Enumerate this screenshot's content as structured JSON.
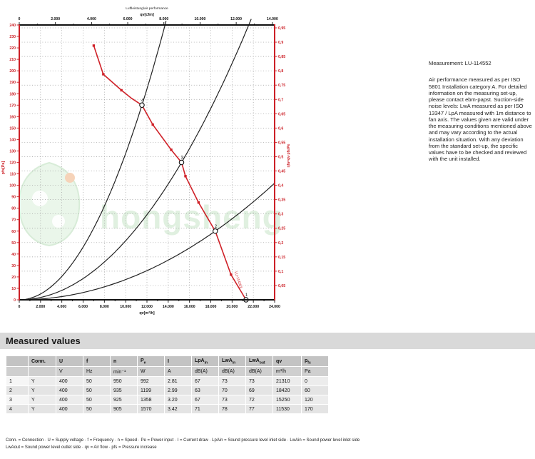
{
  "chart": {
    "title_line1": "Luftleistung/air performance",
    "top_axis_label": "qv[cfm]",
    "bottom_axis_label": "qv[m³/h]",
    "left_axis_label": "pfs[Pa]",
    "right_axis_label": "ηfa=qv·pfs/Pe",
    "curve_end_label": "LU-114552",
    "watermark_text": "hongsheng",
    "colors": {
      "axis_red": "#cc2027",
      "curve_red": "#cf2128",
      "black": "#1a1a1a",
      "grid": "#9a9a9a",
      "watermark_green": "#b9deb9",
      "watermark_fill": "#d9efd9",
      "watermark_dot": "#f0b080"
    }
  },
  "chart_data": {
    "type": "line",
    "title": "Luftleistung/air performance",
    "xlabel": "qv[m³/h]",
    "xlabel_top": "qv[cfm]",
    "ylabel_left": "pfs[Pa]",
    "ylabel_right": "ηfa=qv·pfs/Pe",
    "x_bottom": {
      "min": 0,
      "max": 24000,
      "step": 2000
    },
    "x_top": {
      "min": 0,
      "max": 14000,
      "step": 2000,
      "cfm_to_m3h": 1.699
    },
    "y_left": {
      "min": 0,
      "max": 240,
      "label_step": 10,
      "grid_step": 20
    },
    "y_right": {
      "min": 0,
      "max": 0.96,
      "step": 0.05
    },
    "fan_curve": [
      [
        7000,
        222
      ],
      [
        7900,
        197
      ],
      [
        9600,
        183
      ],
      [
        10550,
        176
      ],
      [
        11530,
        170
      ],
      [
        12550,
        153
      ],
      [
        14280,
        131
      ],
      [
        15250,
        120
      ],
      [
        15620,
        108
      ],
      [
        16850,
        85
      ],
      [
        18420,
        60
      ],
      [
        19900,
        22
      ],
      [
        21310,
        0
      ]
    ],
    "marker_points": [
      [
        7000,
        222
      ],
      [
        7900,
        197
      ],
      [
        9600,
        183
      ],
      [
        12550,
        153
      ],
      [
        14280,
        131
      ],
      [
        15620,
        108
      ],
      [
        16850,
        85
      ],
      [
        19900,
        22
      ]
    ],
    "measured_points": [
      {
        "label": "1",
        "qv": 21310,
        "pfs": 0
      },
      {
        "label": "2",
        "qv": 18420,
        "pfs": 60
      },
      {
        "label": "3",
        "qv": 15250,
        "pfs": 120
      },
      {
        "label": "4",
        "qv": 11530,
        "pfs": 170
      }
    ],
    "system_curves": [
      {
        "through_qv": 11530,
        "through_pfs": 170
      },
      {
        "through_qv": 15250,
        "through_pfs": 120
      },
      {
        "through_qv": 18420,
        "through_pfs": 60
      }
    ],
    "legend_position": "none",
    "grid": true
  },
  "side_text": {
    "title": "Measurement: LU-114552",
    "body": "Air performance measured as per ISO 5801 Installation category A. For detailed information on the measuring set-up, please contact ebm-papst. Suction-side noise levels: LwA measured as per ISO 13347 / LpA measured with 1m distance to fan axis. The values given are valid under the measuring conditions mentioned above and may vary according to the actual installation situation. With any deviation from the standard set-up, the specific values have to be checked and reviewed with the unit installed."
  },
  "measured_values": {
    "section_title": "Measured values",
    "columns": [
      {
        "base": "",
        "sub": ""
      },
      {
        "base": "Conn.",
        "sub": ""
      },
      {
        "base": "U",
        "sub": ""
      },
      {
        "base": "f",
        "sub": ""
      },
      {
        "base": "n",
        "sub": ""
      },
      {
        "base": "P",
        "sub": "e"
      },
      {
        "base": "I",
        "sub": ""
      },
      {
        "base": "LpA",
        "sub": "in"
      },
      {
        "base": "LwA",
        "sub": "in"
      },
      {
        "base": "LwA",
        "sub": "out"
      },
      {
        "base": "qv",
        "sub": ""
      },
      {
        "base": "p",
        "sub": "fs"
      }
    ],
    "units": [
      "",
      "",
      "V",
      "Hz",
      "min⁻¹",
      "W",
      "A",
      "dB(A)",
      "dB(A)",
      "dB(A)",
      "m³/h",
      "Pa"
    ],
    "rows": [
      [
        "1",
        "Y",
        "400",
        "50",
        "950",
        "992",
        "2.81",
        "67",
        "73",
        "73",
        "21310",
        "0"
      ],
      [
        "2",
        "Y",
        "400",
        "50",
        "935",
        "1199",
        "2.99",
        "63",
        "70",
        "69",
        "18420",
        "60"
      ],
      [
        "3",
        "Y",
        "400",
        "50",
        "925",
        "1358",
        "3.20",
        "67",
        "73",
        "72",
        "15250",
        "120"
      ],
      [
        "4",
        "Y",
        "400",
        "50",
        "905",
        "1570",
        "3.42",
        "71",
        "78",
        "77",
        "11530",
        "170"
      ]
    ]
  },
  "footnotes": {
    "line1": "Conn. = Connection · U = Supply voltage · f = Frequency · n = Speed · Pe = Power input · I = Current draw · LpAin = Sound pressure level inlet side · LwAin = Sound power level inlet side",
    "line2": "LwAout = Sound power level outlet side · qv = Air flow · pfs = Pressure increase"
  }
}
